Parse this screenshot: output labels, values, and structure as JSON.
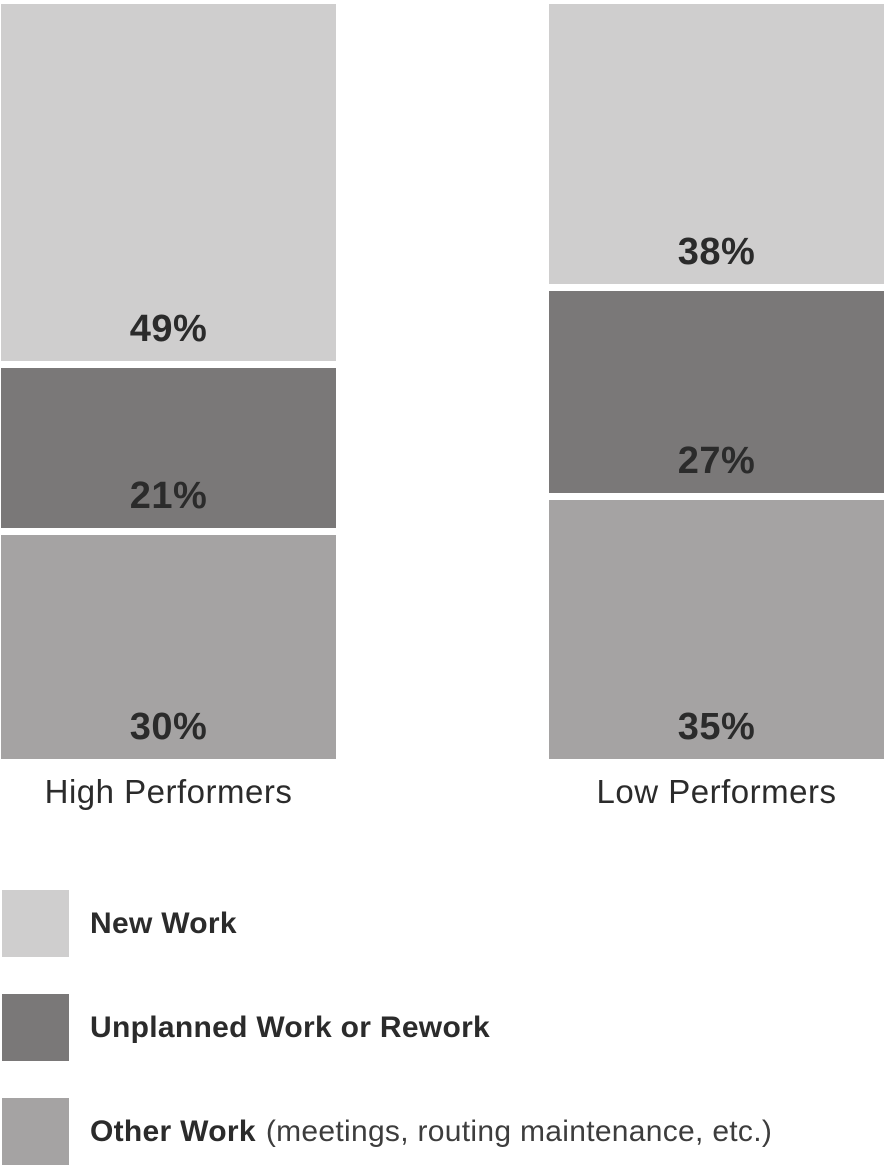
{
  "chart_data": {
    "type": "bar",
    "stacking": "percent",
    "orientation": "vertical",
    "grid": false,
    "axes_visible": false,
    "background_color": "#FFFFFF",
    "text_color": "#2B2B2B",
    "categories": [
      "High Performers",
      "Low Performers"
    ],
    "series": [
      {
        "name": "New Work",
        "color": "#CFCECE",
        "values": [
          49,
          38
        ],
        "labels": [
          "49%",
          "38%"
        ]
      },
      {
        "name": "Unplanned Work or Rework",
        "color": "#7A7878",
        "values": [
          21,
          27
        ],
        "labels": [
          "21%",
          "27%"
        ]
      },
      {
        "name": "Other Work",
        "color": "#A5A3A3",
        "values": [
          30,
          35
        ],
        "labels": [
          "30%",
          "35%"
        ]
      }
    ],
    "legend": {
      "position": "bottom-left",
      "items": [
        {
          "label": "New Work",
          "note": ""
        },
        {
          "label": "Unplanned Work or Rework",
          "note": ""
        },
        {
          "label": "Other Work",
          "note": "(meetings, routing maintenance, etc.)"
        }
      ]
    }
  }
}
